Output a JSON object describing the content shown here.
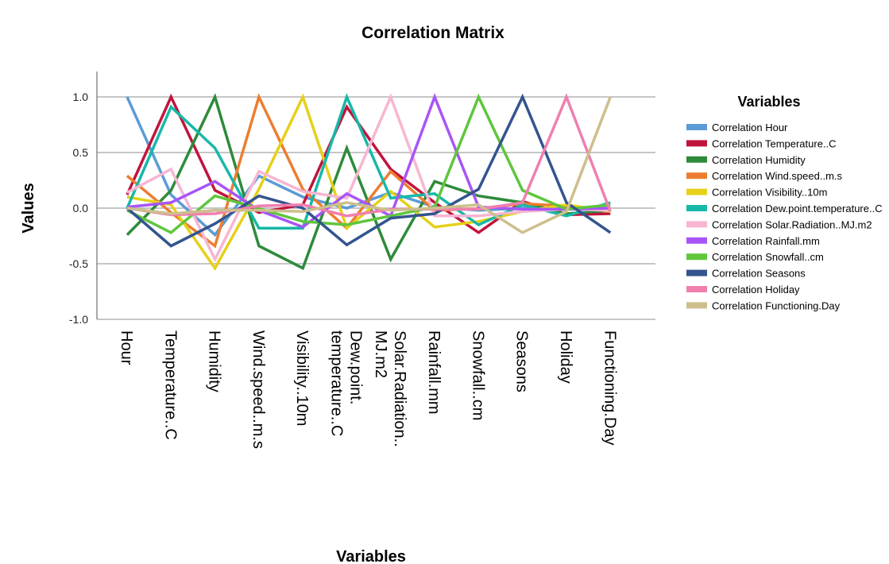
{
  "chart_data": {
    "type": "line",
    "title": "Correlation Matrix",
    "xlabel": "Variables",
    "ylabel": "Values",
    "ylim": [
      -1.0,
      1.0
    ],
    "yticks": [
      "1.0",
      "0.5",
      "0.0",
      "-0.5",
      "-1.0"
    ],
    "grid": true,
    "legend_title": "Variables",
    "legend_position": "right",
    "categories": [
      "Hour",
      "Temperature..C",
      "Humidity",
      "Wind.speed..m.s",
      "Visibility..10m",
      "Dew.point.\ntemperature..C",
      "Solar.Radiation..\nMJ.m2",
      "Rainfall.mm",
      "Snowfall..cm",
      "Seasons",
      "Holiday",
      "Functioning.Day"
    ],
    "series": [
      {
        "name": "Correlation Hour",
        "color": "#5B9BD5",
        "values": [
          1.0,
          0.12,
          -0.24,
          0.29,
          0.1,
          0.0,
          0.14,
          0.01,
          -0.02,
          0.0,
          0.0,
          0.0
        ]
      },
      {
        "name": "Correlation Temperature..C",
        "color": "#C0143C",
        "values": [
          0.12,
          1.0,
          0.16,
          -0.04,
          0.03,
          0.91,
          0.35,
          0.05,
          -0.22,
          0.06,
          -0.06,
          -0.05
        ]
      },
      {
        "name": "Correlation Humidity",
        "color": "#2E8B3A",
        "values": [
          -0.24,
          0.16,
          1.0,
          -0.34,
          -0.54,
          0.54,
          -0.46,
          0.24,
          0.11,
          0.05,
          -0.05,
          -0.02
        ]
      },
      {
        "name": "Correlation Wind.speed..m.s",
        "color": "#ED7D31",
        "values": [
          0.29,
          -0.04,
          -0.34,
          1.0,
          0.17,
          -0.18,
          0.33,
          -0.02,
          -0.004,
          0.04,
          0.02,
          -0.02
        ]
      },
      {
        "name": "Correlation Visibility..10m",
        "color": "#E6D019",
        "values": [
          0.1,
          0.03,
          -0.54,
          0.17,
          1.0,
          -0.18,
          0.15,
          -0.17,
          -0.12,
          -0.03,
          0.03,
          -0.03
        ]
      },
      {
        "name": "Correlation Dew.point.temperature..C",
        "color": "#17B8A8",
        "values": [
          0.0,
          0.91,
          0.54,
          -0.18,
          -0.18,
          1.0,
          0.09,
          0.13,
          -0.15,
          0.03,
          -0.07,
          0.05
        ]
      },
      {
        "name": "Correlation Solar.Radiation..MJ.m2",
        "color": "#F7B6D2",
        "values": [
          0.14,
          0.35,
          -0.46,
          0.33,
          0.15,
          0.09,
          1.0,
          -0.07,
          -0.07,
          -0.03,
          -0.01,
          -0.02
        ]
      },
      {
        "name": "Correlation Rainfall.mm",
        "color": "#A855F7",
        "values": [
          0.01,
          0.05,
          0.24,
          -0.02,
          -0.17,
          0.13,
          -0.07,
          1.0,
          0.01,
          -0.01,
          -0.01,
          0.0
        ]
      },
      {
        "name": "Correlation Snowfall..cm",
        "color": "#5FC63C",
        "values": [
          -0.02,
          -0.22,
          0.11,
          -0.004,
          -0.12,
          -0.15,
          -0.07,
          0.01,
          1.0,
          0.16,
          -0.01,
          0.03
        ]
      },
      {
        "name": "Correlation Seasons",
        "color": "#34548F",
        "values": [
          0.0,
          -0.34,
          -0.14,
          0.11,
          0.0,
          -0.33,
          -0.09,
          -0.05,
          0.17,
          1.0,
          0.05,
          -0.22
        ]
      },
      {
        "name": "Correlation Holiday",
        "color": "#F07FAE",
        "values": [
          0.0,
          -0.06,
          -0.05,
          0.02,
          0.03,
          -0.07,
          -0.01,
          -0.01,
          -0.01,
          0.05,
          1.0,
          -0.03
        ]
      },
      {
        "name": "Correlation Functioning.Day",
        "color": "#CDBF8D",
        "values": [
          0.0,
          -0.05,
          -0.02,
          -0.02,
          -0.03,
          0.05,
          -0.02,
          0.0,
          0.03,
          -0.22,
          -0.03,
          1.0
        ]
      }
    ]
  }
}
